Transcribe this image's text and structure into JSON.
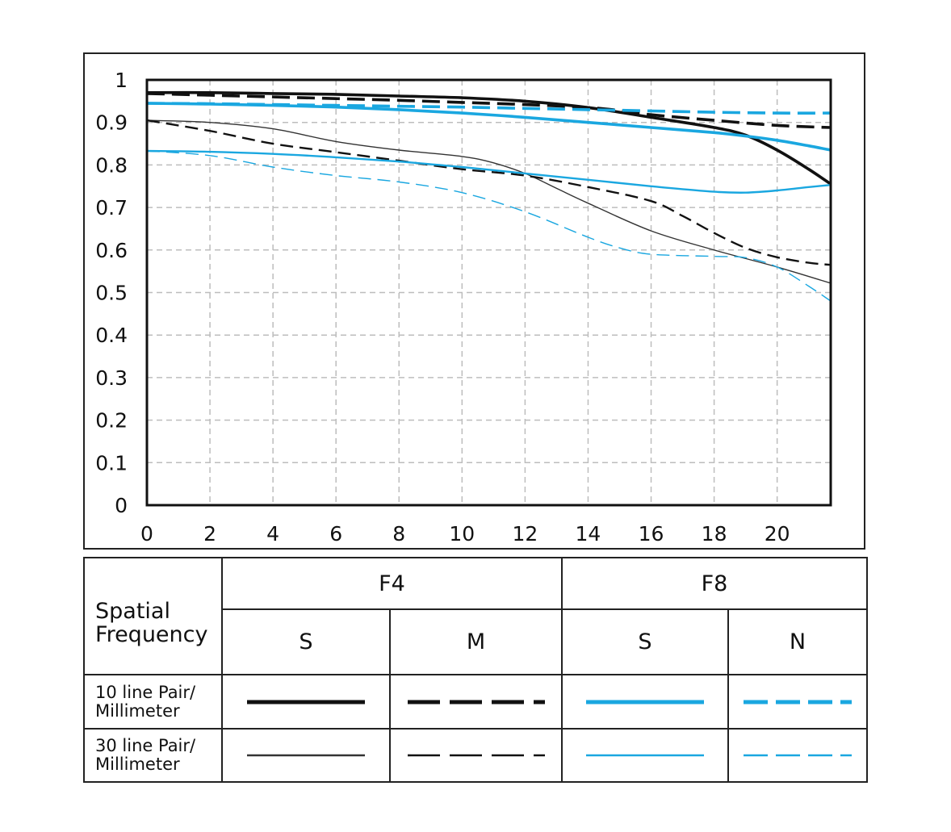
{
  "chart_data": {
    "type": "line",
    "title": "",
    "xlabel": "",
    "ylabel": "",
    "xlim": [
      0,
      21.7
    ],
    "ylim": [
      0,
      1
    ],
    "x_ticks": [
      "0",
      "2",
      "4",
      "6",
      "8",
      "10",
      "12",
      "14",
      "16",
      "18",
      "20"
    ],
    "y_ticks": [
      "0",
      "0.1",
      "0.2",
      "0.3",
      "0.4",
      "0.5",
      "0.6",
      "0.7",
      "0.8",
      "0.9",
      "1"
    ],
    "grid": true,
    "series": [
      {
        "key": "f4_s_10",
        "color": "#111111",
        "style": "solid",
        "weight": "thick",
        "points": [
          [
            0,
            0.97
          ],
          [
            2,
            0.97
          ],
          [
            4,
            0.968
          ],
          [
            6,
            0.966
          ],
          [
            8,
            0.962
          ],
          [
            10,
            0.958
          ],
          [
            12,
            0.95
          ],
          [
            14,
            0.935
          ],
          [
            16,
            0.912
          ],
          [
            18,
            0.888
          ],
          [
            19,
            0.87
          ],
          [
            20,
            0.835
          ],
          [
            21,
            0.79
          ],
          [
            21.7,
            0.755
          ]
        ]
      },
      {
        "key": "f4_m_10",
        "color": "#111111",
        "style": "dashed",
        "weight": "thick",
        "points": [
          [
            0,
            0.968
          ],
          [
            2,
            0.964
          ],
          [
            4,
            0.96
          ],
          [
            6,
            0.956
          ],
          [
            8,
            0.952
          ],
          [
            10,
            0.947
          ],
          [
            12,
            0.942
          ],
          [
            14,
            0.935
          ],
          [
            15,
            0.928
          ],
          [
            16,
            0.918
          ],
          [
            18,
            0.905
          ],
          [
            20,
            0.893
          ],
          [
            21.7,
            0.888
          ]
        ]
      },
      {
        "key": "f8_s_10",
        "color": "#1aa7e0",
        "style": "solid",
        "weight": "thick",
        "points": [
          [
            0,
            0.945
          ],
          [
            2,
            0.943
          ],
          [
            4,
            0.94
          ],
          [
            6,
            0.936
          ],
          [
            8,
            0.93
          ],
          [
            10,
            0.922
          ],
          [
            12,
            0.912
          ],
          [
            14,
            0.9
          ],
          [
            16,
            0.888
          ],
          [
            18,
            0.876
          ],
          [
            19,
            0.868
          ],
          [
            20,
            0.858
          ],
          [
            21,
            0.845
          ],
          [
            21.7,
            0.835
          ]
        ]
      },
      {
        "key": "f8_n_10",
        "color": "#1aa7e0",
        "style": "dashed",
        "weight": "thick",
        "points": [
          [
            0,
            0.945
          ],
          [
            2,
            0.944
          ],
          [
            4,
            0.942
          ],
          [
            6,
            0.94
          ],
          [
            8,
            0.938
          ],
          [
            10,
            0.936
          ],
          [
            12,
            0.933
          ],
          [
            14,
            0.93
          ],
          [
            16,
            0.927
          ],
          [
            18,
            0.924
          ],
          [
            20,
            0.922
          ],
          [
            21.7,
            0.922
          ]
        ]
      },
      {
        "key": "f4_s_30",
        "color": "#333333",
        "style": "solid",
        "weight": "thin",
        "points": [
          [
            0,
            0.905
          ],
          [
            2,
            0.9
          ],
          [
            4,
            0.885
          ],
          [
            6,
            0.855
          ],
          [
            8,
            0.835
          ],
          [
            10,
            0.82
          ],
          [
            11,
            0.805
          ],
          [
            12,
            0.78
          ],
          [
            13,
            0.745
          ],
          [
            14,
            0.71
          ],
          [
            16,
            0.645
          ],
          [
            18,
            0.6
          ],
          [
            20,
            0.56
          ],
          [
            21.7,
            0.522
          ]
        ]
      },
      {
        "key": "f4_m_30",
        "color": "#111111",
        "style": "dashed",
        "weight": "medium",
        "points": [
          [
            0,
            0.905
          ],
          [
            2,
            0.88
          ],
          [
            4,
            0.85
          ],
          [
            6,
            0.83
          ],
          [
            8,
            0.81
          ],
          [
            10,
            0.79
          ],
          [
            12,
            0.775
          ],
          [
            14,
            0.748
          ],
          [
            16,
            0.715
          ],
          [
            17,
            0.68
          ],
          [
            18,
            0.64
          ],
          [
            19,
            0.605
          ],
          [
            20,
            0.583
          ],
          [
            21,
            0.57
          ],
          [
            21.7,
            0.565
          ]
        ]
      },
      {
        "key": "f8_s_30",
        "color": "#1aa7e0",
        "style": "solid",
        "weight": "medium",
        "points": [
          [
            0,
            0.833
          ],
          [
            2,
            0.831
          ],
          [
            4,
            0.826
          ],
          [
            6,
            0.818
          ],
          [
            8,
            0.808
          ],
          [
            10,
            0.795
          ],
          [
            12,
            0.78
          ],
          [
            14,
            0.765
          ],
          [
            16,
            0.75
          ],
          [
            18,
            0.737
          ],
          [
            19,
            0.735
          ],
          [
            20,
            0.74
          ],
          [
            21,
            0.748
          ],
          [
            21.7,
            0.753
          ]
        ]
      },
      {
        "key": "f8_n_30",
        "color": "#1aa7e0",
        "style": "dashed",
        "weight": "thin",
        "points": [
          [
            0,
            0.833
          ],
          [
            2,
            0.822
          ],
          [
            4,
            0.795
          ],
          [
            6,
            0.775
          ],
          [
            8,
            0.76
          ],
          [
            10,
            0.735
          ],
          [
            12,
            0.69
          ],
          [
            14,
            0.63
          ],
          [
            15,
            0.605
          ],
          [
            16,
            0.59
          ],
          [
            18,
            0.585
          ],
          [
            19,
            0.582
          ],
          [
            20,
            0.56
          ],
          [
            21,
            0.515
          ],
          [
            21.7,
            0.48
          ]
        ]
      }
    ]
  },
  "legend": {
    "corner_label": "Spatial\nFrequency",
    "groups": [
      {
        "label": "F4"
      },
      {
        "label": "F8"
      }
    ],
    "columns": [
      {
        "label": "S"
      },
      {
        "label": "M"
      },
      {
        "label": "S"
      },
      {
        "label": "N"
      }
    ],
    "rows": [
      {
        "label": "10 line Pair/\nMillimeter",
        "samples": [
          "f4_s_10",
          "f4_m_10",
          "f8_s_10",
          "f8_n_10"
        ]
      },
      {
        "label": "30 line Pair/\nMillimeter",
        "samples": [
          "f4_s_30",
          "f4_m_30",
          "f8_s_30",
          "f8_n_30"
        ]
      }
    ]
  }
}
